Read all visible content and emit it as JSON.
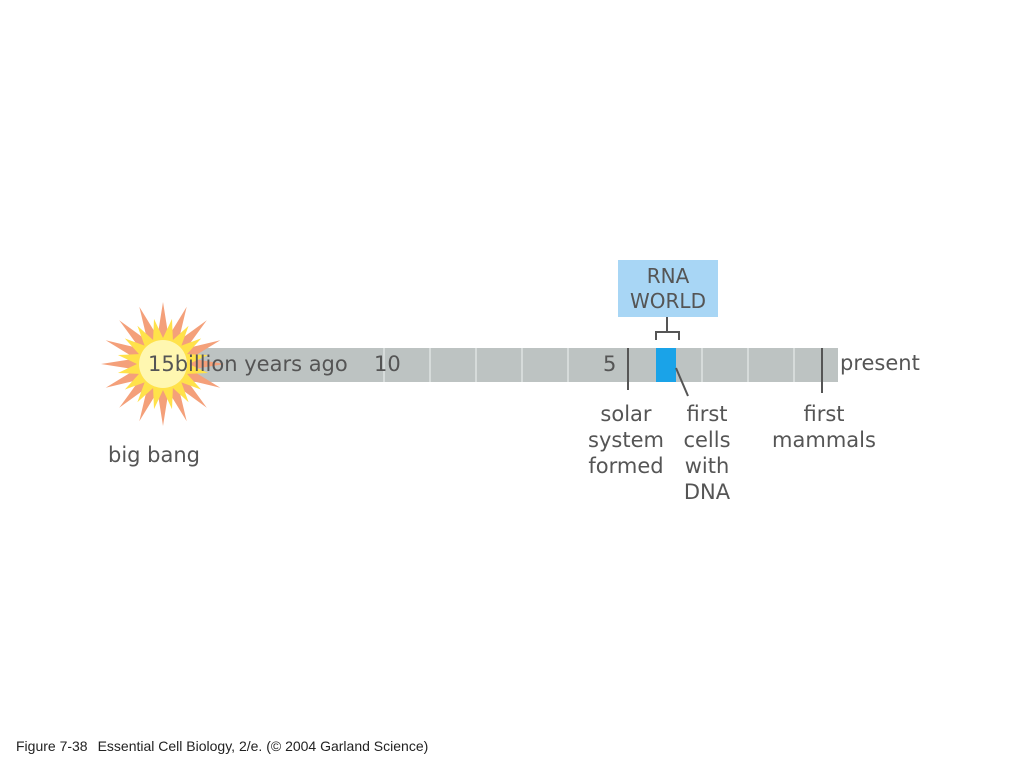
{
  "timeline": {
    "start_label": "15billion years ago",
    "tick_ten": "10",
    "tick_five": "5",
    "end_label": "present",
    "colors": {
      "bar": "#bdc3c2",
      "bar_divider": "#d6dbda",
      "highlight": "#1aa3e8",
      "marker": "#555555"
    }
  },
  "big_bang": {
    "label": "big bang",
    "colors": {
      "outer": "#f4a07a",
      "inner": "#ffe24a",
      "core": "#fff7b0"
    }
  },
  "rna_world": {
    "line1": "RNA",
    "line2": "WORLD",
    "color": "#a8d6f5"
  },
  "events": {
    "solar_system": [
      "solar",
      "system",
      "formed"
    ],
    "first_cells": [
      "first",
      "cells",
      "with",
      "DNA"
    ],
    "first_mammals": [
      "first",
      "mammals"
    ]
  },
  "caption": {
    "figure": "Figure 7-38",
    "text": "Essential Cell Biology, 2/e. (© 2004 Garland Science)"
  }
}
